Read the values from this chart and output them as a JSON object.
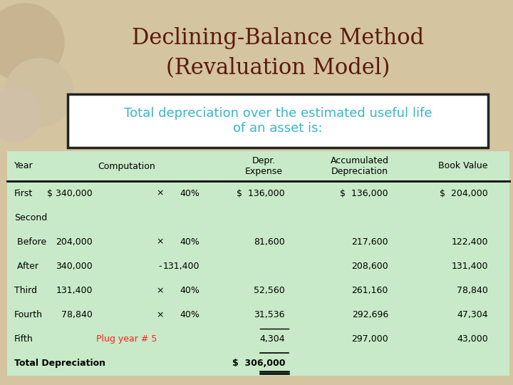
{
  "title_line1": "Declining-Balance Method",
  "title_line2": "(Revaluation Model)",
  "title_color": "#5B1A0A",
  "subtitle": "Total depreciation over the estimated useful life\nof an asset is:",
  "subtitle_color": "#38B5C8",
  "bg_color": "#D4C4A0",
  "table_bg": "#C8EAC8",
  "plug_color": "#FF2020",
  "text_color": "#000000",
  "rows": [
    [
      "First",
      "$ 340,000",
      "×",
      "40%",
      "$  136,000",
      "$  136,000",
      "$  204,000"
    ],
    [
      "Second",
      "",
      "",
      "",
      "",
      "",
      ""
    ],
    [
      " Before",
      "204,000",
      "×",
      "40%",
      "81,600",
      "217,600",
      "122,400"
    ],
    [
      " After",
      "340,000",
      "-",
      "131,400",
      "",
      "208,600",
      "131,400"
    ],
    [
      "Third",
      "131,400",
      "×",
      "40%",
      "52,560",
      "261,160",
      "78,840"
    ],
    [
      "Fourth",
      "78,840",
      "×",
      "40%",
      "31,536",
      "292,696",
      "47,304"
    ],
    [
      "Fifth",
      "Plug year # 5",
      "",
      "",
      "4,304",
      "297,000",
      "43,000"
    ],
    [
      "Total Depreciation",
      "",
      "",
      "",
      "$  306,000",
      "",
      ""
    ]
  ],
  "plug_row_idx": 6,
  "plug_col_idx": 1
}
